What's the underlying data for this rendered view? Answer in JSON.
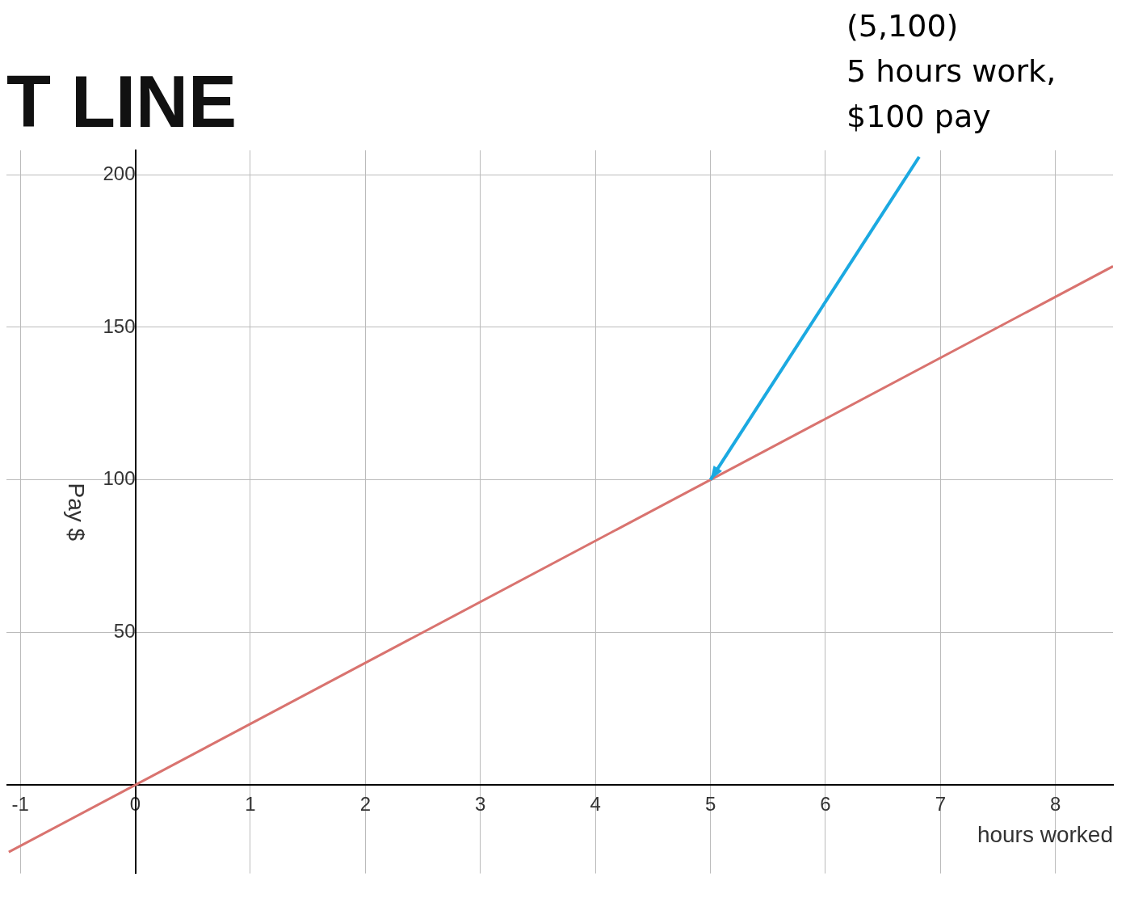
{
  "chart_data": {
    "type": "line",
    "title": "T LINE",
    "xlabel": "hours worked",
    "ylabel": "Pay $",
    "x": [
      -1.1,
      0,
      5,
      8.5
    ],
    "series": [
      {
        "color": "#d9736f",
        "values": [
          -22,
          0,
          100,
          170
        ]
      }
    ],
    "xlim": [
      -1.12,
      8.5
    ],
    "ylim": [
      -29,
      208
    ],
    "xticks": [
      -1,
      0,
      1,
      2,
      3,
      4,
      5,
      6,
      7,
      8
    ],
    "yticks": [
      {
        "value": 0,
        "label": null
      },
      50,
      100,
      150,
      200
    ],
    "grid": true,
    "legend": false,
    "marker": "none",
    "line_style": "solid",
    "annotations": [
      {
        "text": "(5,100)\n5 hours work,\n$100 pay",
        "x": 5,
        "y": 100
      }
    ]
  }
}
